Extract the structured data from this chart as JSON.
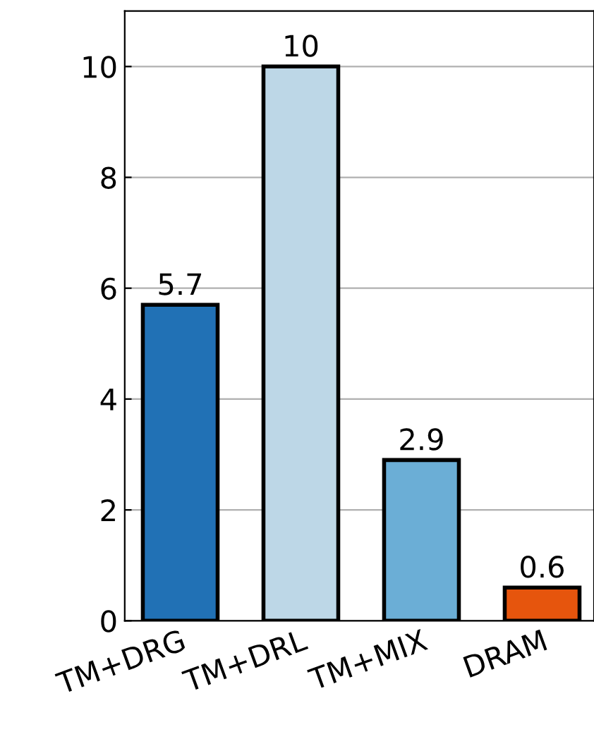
{
  "chart_data": {
    "type": "bar",
    "categories": [
      "TM+DRG",
      "TM+DRL",
      "TM+MIX",
      "DRAM"
    ],
    "values": [
      5.7,
      10,
      2.9,
      0.6
    ],
    "colors": [
      "#2171b5",
      "#bdd7e7",
      "#6baed6",
      "#e6550d"
    ],
    "ylim": [
      0,
      11
    ],
    "yticks": [
      0,
      2,
      4,
      6,
      8,
      10
    ],
    "grid": "y",
    "data_labels": true
  }
}
